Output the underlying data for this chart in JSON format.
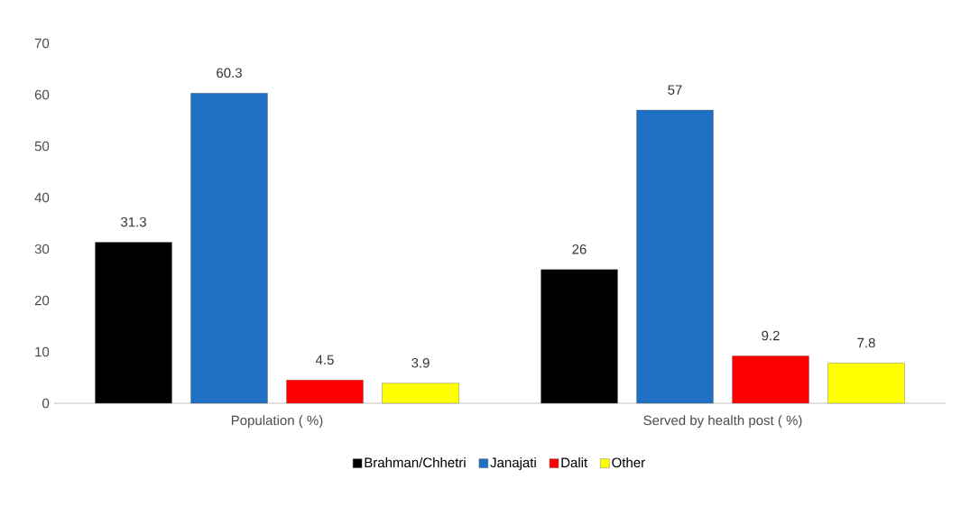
{
  "chart_data": {
    "type": "bar",
    "categories": [
      "Population ( %)",
      "Served by health post ( %)"
    ],
    "series": [
      {
        "name": "Brahman/Chhetri",
        "color": "#000000",
        "values": [
          31.3,
          26
        ]
      },
      {
        "name": "Janajati",
        "color": "#1f6fc5",
        "values": [
          60.3,
          57
        ]
      },
      {
        "name": "Dalit",
        "color": "#ff0000",
        "values": [
          4.5,
          9.2
        ]
      },
      {
        "name": "Other",
        "color": "#ffff00",
        "values": [
          3.9,
          7.8
        ]
      }
    ],
    "ylim": [
      0,
      70
    ],
    "yticks": [
      0,
      10,
      20,
      30,
      40,
      50,
      60,
      70
    ],
    "grid": false,
    "legend": "bottom",
    "data_labels": true
  }
}
